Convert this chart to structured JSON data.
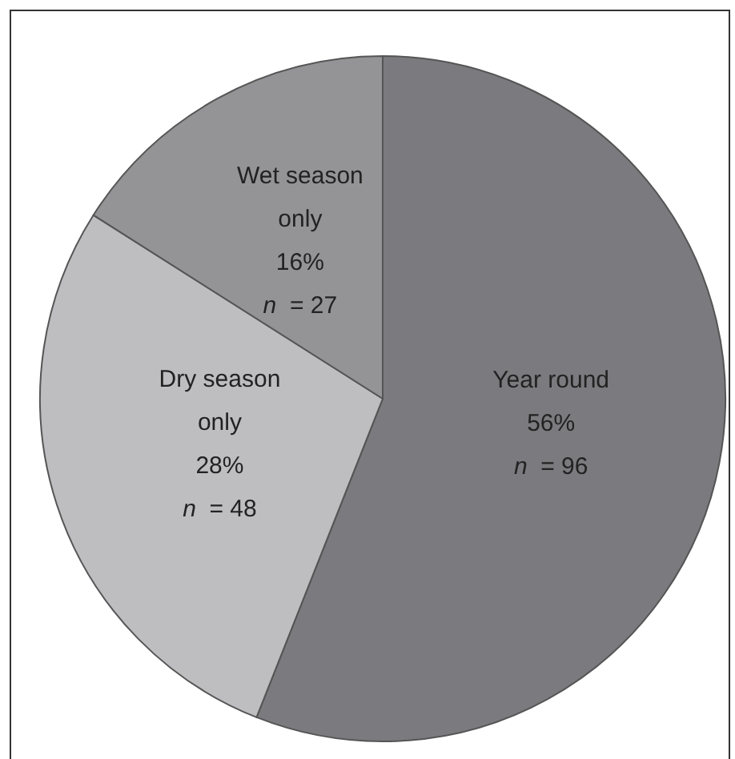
{
  "chart_data": {
    "type": "pie",
    "categories": [
      "Year round",
      "Dry season only",
      "Wet season only"
    ],
    "values": [
      56,
      28,
      16
    ],
    "value_labels": [
      "56%\nn = 96",
      "28%\nn = 48",
      "16%\nn = 27"
    ],
    "colors": [
      "#7b7b7f",
      "#bebec1",
      "#949497"
    ]
  }
}
